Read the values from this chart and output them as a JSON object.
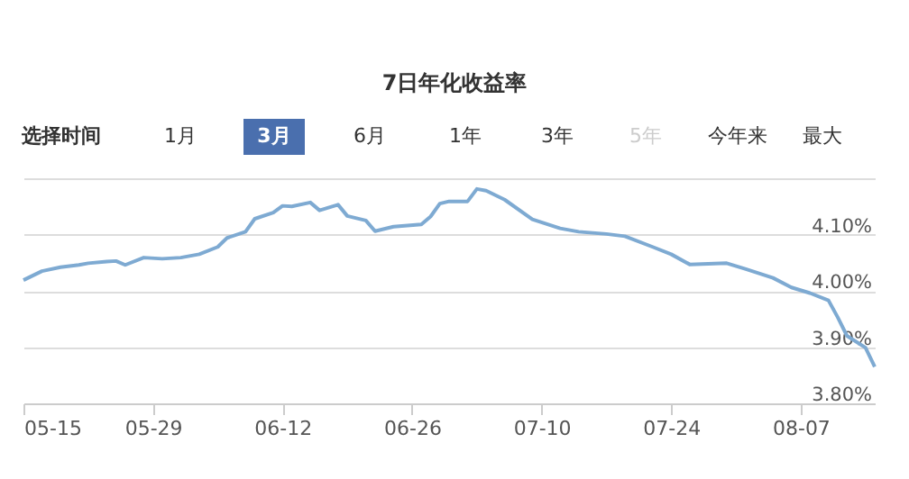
{
  "chart_data": {
    "type": "line",
    "title": "7日年化收益率",
    "annotations": [
      "选择时间",
      "1月",
      "3月",
      "6月",
      "1年",
      "3年",
      "5年",
      "今年来",
      "最大"
    ],
    "x": [
      "--05-15",
      "--05-17",
      "--05-19",
      "--05-21",
      "--05-22",
      "--05-24",
      "--05-25",
      "--05-26",
      "--05-28",
      "--05-30",
      "--06-01",
      "--06-03",
      "--06-05",
      "--06-06",
      "--06-08",
      "--06-09",
      "--06-11",
      "--06-12",
      "--06-13",
      "--06-15",
      "--06-16",
      "--06-18",
      "--06-19",
      "--06-21",
      "--06-22",
      "--06-24",
      "--06-27",
      "--06-28",
      "--06-29",
      "--06-30",
      "--07-02",
      "--07-03",
      "--07-04",
      "--07-06",
      "--07-09",
      "--07-12",
      "--07-14",
      "--07-17",
      "--07-19",
      "--07-22",
      "--07-24",
      "--07-26",
      "--07-28",
      "--07-30",
      "--08-01",
      "--08-04",
      "--08-06",
      "--08-08",
      "--08-10",
      "--08-11",
      "--08-12",
      "--08-14",
      "--08-15"
    ],
    "series": [
      {
        "color": "#7eaad2",
        "values": [
          4.019,
          4.035,
          4.042,
          4.046,
          4.049,
          4.052,
          4.053,
          4.046,
          4.059,
          4.057,
          4.059,
          4.065,
          4.078,
          4.094,
          4.105,
          4.128,
          4.139,
          4.151,
          4.15,
          4.157,
          4.143,
          4.153,
          4.133,
          4.125,
          4.106,
          4.114,
          4.118,
          4.132,
          4.155,
          4.159,
          4.159,
          4.181,
          4.178,
          4.162,
          4.127,
          4.111,
          4.105,
          4.101,
          4.097,
          4.078,
          4.065,
          4.047,
          4.048,
          4.049,
          4.039,
          4.023,
          4.006,
          3.996,
          3.983,
          3.953,
          3.92,
          3.899,
          3.865
        ]
      }
    ],
    "xlim": [
      "--05-15",
      "--08-15"
    ],
    "xticks": [
      {
        "value": "--05-15",
        "label": "05-15"
      },
      {
        "value": "--05-29",
        "label": "05-29"
      },
      {
        "value": "--06-12",
        "label": "06-12"
      },
      {
        "value": "--06-26",
        "label": "06-26"
      },
      {
        "value": "--07-10",
        "label": "07-10"
      },
      {
        "value": "--07-24",
        "label": "07-24"
      },
      {
        "value": "--08-07",
        "label": "08-07"
      }
    ],
    "ylim": [
      3.8,
      4.2
    ],
    "yticks": [
      {
        "value": 3.8,
        "label": "3.80%"
      },
      {
        "value": 3.9,
        "label": "3.90%"
      },
      {
        "value": 4.0,
        "label": "4.00%"
      },
      {
        "value": 4.1,
        "label": "4.10%"
      },
      {
        "value": 4.2,
        "label": null
      }
    ],
    "grid": "y",
    "line_style": "solid",
    "marker": "none"
  }
}
